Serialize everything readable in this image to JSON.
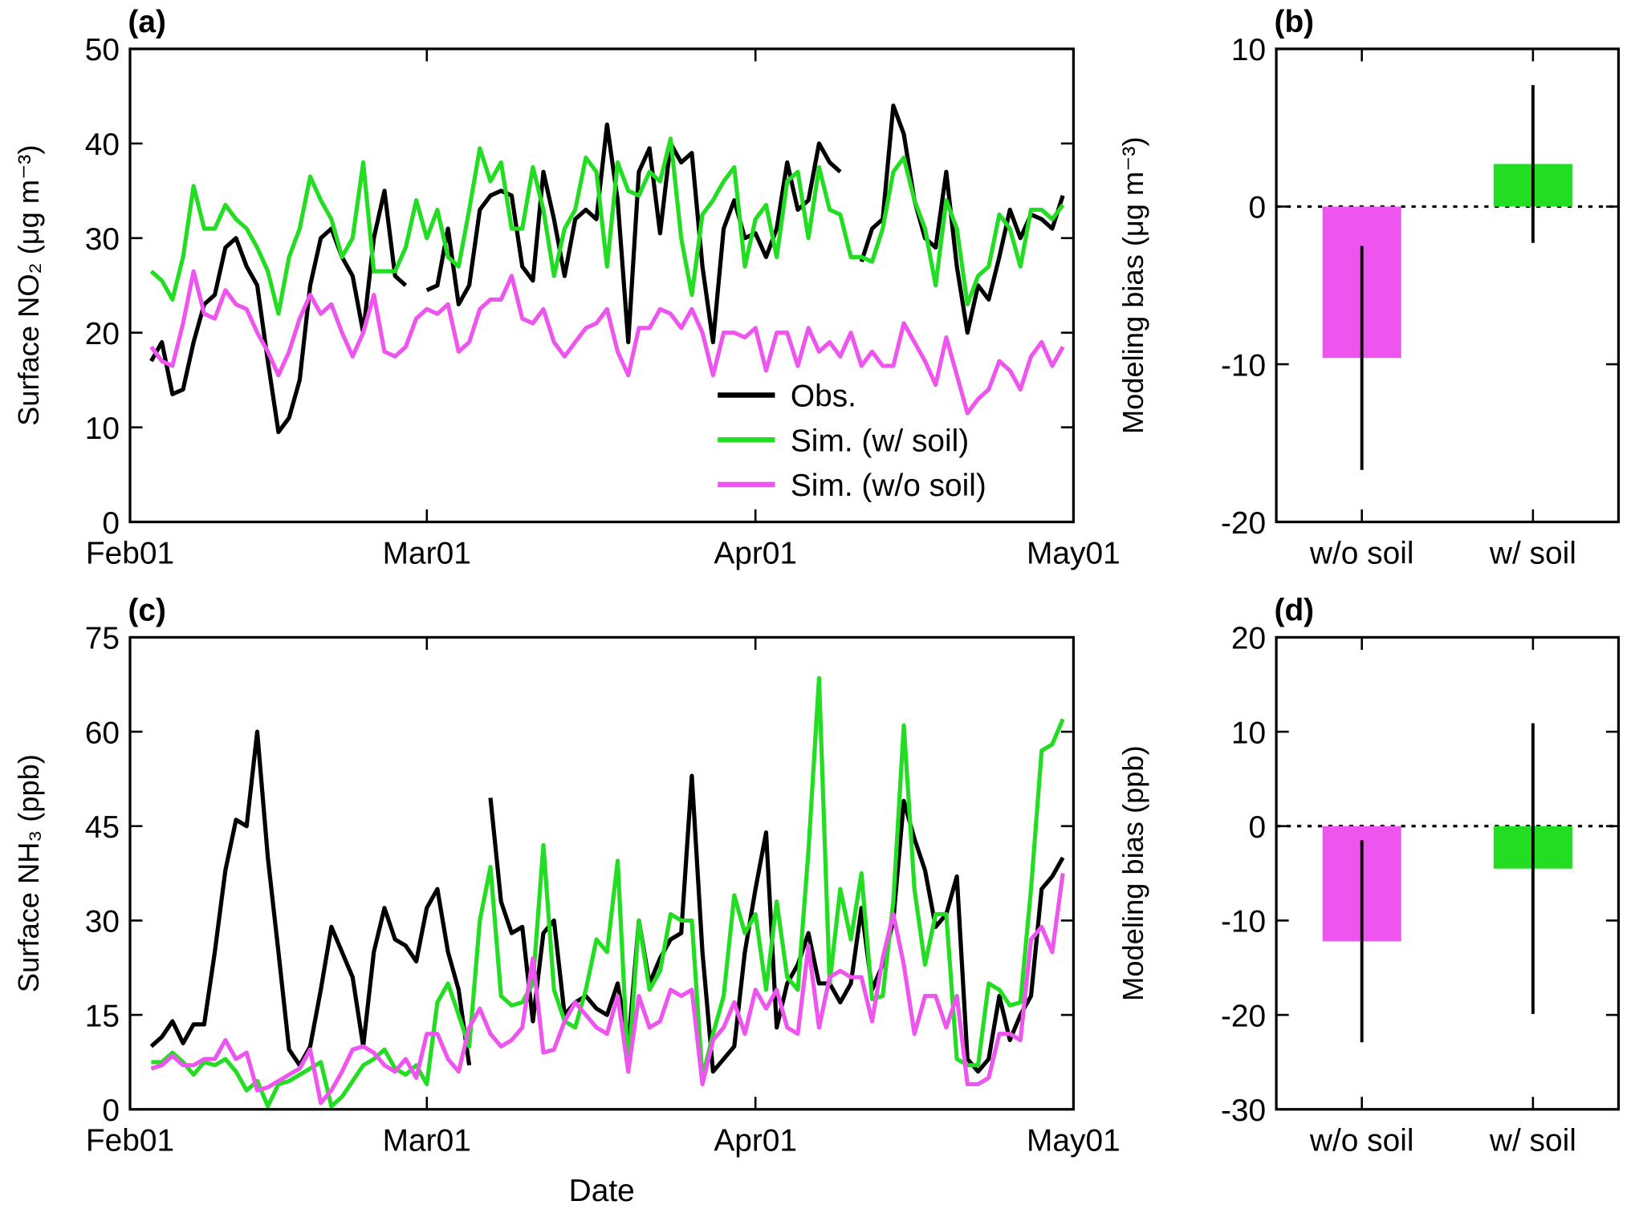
{
  "chart_data": [
    {
      "type": "line",
      "label": "(a)",
      "ylabel": "Surface NO₂ (μg m⁻³)",
      "legend": "lower right",
      "xlim": [
        0,
        89
      ],
      "xticks": [
        {
          "value": 0,
          "label": "Feb01"
        },
        {
          "value": 28,
          "label": "Mar01"
        },
        {
          "value": 59,
          "label": "Apr01"
        },
        {
          "value": 89,
          "label": "May01"
        }
      ],
      "ylim": [
        0,
        50
      ],
      "yticks": [
        0,
        10,
        20,
        30,
        40,
        50
      ],
      "x": [
        2,
        3,
        4,
        5,
        6,
        7,
        8,
        9,
        10,
        11,
        12,
        13,
        14,
        15,
        16,
        17,
        18,
        19,
        20,
        21,
        22,
        23,
        24,
        25,
        26,
        27,
        28,
        29,
        30,
        31,
        32,
        33,
        34,
        35,
        36,
        37,
        38,
        39,
        40,
        41,
        42,
        43,
        44,
        45,
        46,
        47,
        48,
        49,
        50,
        51,
        52,
        53,
        54,
        55,
        56,
        57,
        58,
        59,
        60,
        61,
        62,
        63,
        64,
        65,
        66,
        67,
        68,
        69,
        70,
        71,
        72,
        73,
        74,
        75,
        76,
        77,
        78,
        79,
        80,
        81,
        82,
        83,
        84,
        85,
        86,
        87,
        88
      ],
      "series": [
        {
          "name": "Obs.",
          "color": "#000000",
          "values": [
            17,
            19,
            13.5,
            14,
            19,
            23,
            24,
            29,
            30,
            27,
            25,
            17,
            9.5,
            11,
            15,
            25,
            30,
            31,
            28,
            26,
            20,
            30,
            35,
            26,
            25,
            null,
            24.5,
            25,
            31,
            23,
            25,
            33,
            34.5,
            35,
            34.5,
            27,
            25.5,
            37,
            32,
            26,
            32,
            33,
            32,
            42,
            34,
            19,
            37,
            39.5,
            30.5,
            40,
            38,
            39,
            27,
            19,
            31,
            34,
            30,
            30.5,
            28,
            31,
            38,
            33,
            34,
            40,
            38,
            37,
            null,
            27.5,
            31,
            32,
            44,
            41,
            34,
            30,
            29,
            37,
            27,
            20,
            25,
            23.5,
            28,
            33,
            30,
            32.5,
            32,
            31,
            34.5
          ]
        },
        {
          "name": "Sim. (w/ soil)",
          "color": "#22dd22",
          "values": [
            26.5,
            25.5,
            23.5,
            28,
            35.5,
            31,
            31,
            33.5,
            32,
            31,
            29,
            26.5,
            22,
            28,
            31,
            36.5,
            34,
            32,
            28,
            30,
            38,
            26.5,
            26.5,
            26.5,
            29,
            34,
            30,
            33,
            28,
            27,
            33,
            39.5,
            36,
            38,
            31,
            31,
            37.5,
            33,
            26,
            31,
            33,
            38.5,
            37,
            27,
            38,
            35,
            34.5,
            37,
            36,
            40.5,
            30,
            24,
            32.5,
            34,
            36,
            37.5,
            27,
            32,
            33.5,
            28,
            36,
            37,
            30,
            37.5,
            33,
            32.5,
            28,
            28,
            27.5,
            31,
            37,
            38.5,
            34,
            31,
            25,
            34,
            31,
            23,
            26,
            27,
            32.5,
            31,
            27,
            33,
            33,
            32,
            33.5
          ]
        },
        {
          "name": "Sim. (w/o soil)",
          "color": "#ee55ee",
          "values": [
            18.5,
            17,
            16.5,
            21,
            26.5,
            22,
            21.5,
            24.5,
            23,
            22.5,
            20,
            18,
            15.5,
            18,
            21.5,
            24,
            22,
            23,
            20,
            17.5,
            20,
            24,
            18,
            17.5,
            18.5,
            21.5,
            22.5,
            22,
            23,
            18,
            19,
            22.5,
            23.5,
            23.5,
            26,
            21.5,
            21,
            22.5,
            19,
            17.5,
            19,
            20.5,
            21,
            22.5,
            18,
            15.5,
            20.5,
            20.5,
            22.5,
            22,
            20.5,
            22.5,
            20,
            15.5,
            20,
            20,
            19.5,
            20.5,
            16,
            20,
            20,
            16.5,
            20.5,
            18,
            19,
            17.5,
            20,
            16.5,
            18,
            16.5,
            16.5,
            21,
            19,
            17,
            14.5,
            19.5,
            15.5,
            11.5,
            13,
            14,
            17,
            16,
            14,
            17.5,
            19,
            16.5,
            18.5
          ]
        }
      ]
    },
    {
      "type": "bar",
      "label": "(b)",
      "ylabel": "Modeling bias (μg m⁻³)",
      "categories": [
        "w/o soil",
        "w/ soil"
      ],
      "values": [
        -9.6,
        2.7
      ],
      "errors": [
        7.1,
        5.0
      ],
      "colors": [
        "#ee55ee",
        "#22dd22"
      ],
      "ylim": [
        -20,
        10
      ],
      "yticks": [
        -20,
        -10,
        0,
        10
      ]
    },
    {
      "type": "line",
      "label": "(c)",
      "ylabel": "Surface NH₃ (ppb)",
      "xlabel": "Date",
      "xlim": [
        0,
        89
      ],
      "xticks": [
        {
          "value": 0,
          "label": "Feb01"
        },
        {
          "value": 28,
          "label": "Mar01"
        },
        {
          "value": 59,
          "label": "Apr01"
        },
        {
          "value": 89,
          "label": "May01"
        }
      ],
      "ylim": [
        0,
        75
      ],
      "yticks": [
        0,
        15,
        30,
        45,
        60,
        75
      ],
      "x": [
        2,
        3,
        4,
        5,
        6,
        7,
        8,
        9,
        10,
        11,
        12,
        13,
        14,
        15,
        16,
        17,
        18,
        19,
        20,
        21,
        22,
        23,
        24,
        25,
        26,
        27,
        28,
        29,
        30,
        31,
        32,
        33,
        34,
        35,
        36,
        37,
        38,
        39,
        40,
        41,
        42,
        43,
        44,
        45,
        46,
        47,
        48,
        49,
        50,
        51,
        52,
        53,
        54,
        55,
        56,
        57,
        58,
        59,
        60,
        61,
        62,
        63,
        64,
        65,
        66,
        67,
        68,
        69,
        70,
        71,
        72,
        73,
        74,
        75,
        76,
        77,
        78,
        79,
        80,
        81,
        82,
        83,
        84,
        85,
        86,
        87,
        88
      ],
      "series": [
        {
          "color": "#000000",
          "values": [
            10,
            11.5,
            14,
            10.5,
            13.5,
            13.5,
            25,
            38,
            46,
            45,
            60,
            40,
            25,
            9.5,
            7,
            10,
            19,
            29,
            25,
            21,
            10,
            25,
            32,
            27,
            26,
            23.5,
            32,
            35,
            25,
            19,
            7,
            null,
            49.5,
            33,
            28,
            29,
            14,
            28,
            30,
            15,
            17,
            18,
            16,
            15,
            20,
            10,
            30,
            20,
            24,
            27,
            28,
            53,
            25,
            6,
            8,
            10,
            25,
            35,
            44,
            13,
            20,
            23,
            28,
            20,
            20,
            17,
            20,
            32,
            19,
            23,
            30,
            49,
            43,
            38,
            29,
            31,
            37,
            8,
            6,
            8,
            18,
            11,
            15,
            18,
            35,
            37,
            40
          ]
        },
        {
          "color": "#22dd22",
          "values": [
            7.5,
            7.5,
            9,
            7.5,
            5.5,
            7.5,
            7,
            8,
            6,
            3,
            4.5,
            0.5,
            4,
            4.5,
            5.5,
            6.5,
            7.5,
            0.5,
            2,
            4.5,
            7,
            8,
            9.5,
            6.5,
            5.5,
            7,
            4,
            17,
            20,
            15,
            10,
            30,
            38.5,
            18,
            16.5,
            17,
            20,
            42,
            19,
            14,
            13,
            19,
            27,
            25,
            39.5,
            6,
            30,
            19,
            22,
            31,
            30,
            30,
            5,
            12,
            18,
            34,
            28,
            31,
            19,
            33,
            21,
            19,
            41,
            68.5,
            20,
            35,
            27,
            37.5,
            17.5,
            18,
            33,
            61,
            35,
            23,
            31,
            31,
            8,
            7,
            7,
            20,
            19,
            16.5,
            17,
            35,
            57,
            58,
            62
          ]
        },
        {
          "color": "#ee55ee",
          "values": [
            6.5,
            7,
            8.5,
            7,
            7,
            8,
            8,
            11,
            8,
            9,
            3,
            3.5,
            4.5,
            5.5,
            6.5,
            9.5,
            1,
            3,
            6,
            9.5,
            10,
            9,
            7,
            6,
            8,
            5,
            12,
            12,
            8,
            6,
            13,
            16,
            12,
            10,
            11,
            13,
            24,
            9,
            9.5,
            14,
            17,
            15,
            13,
            12,
            18,
            6,
            18,
            13,
            14,
            19,
            18,
            19,
            4,
            11,
            13,
            17,
            12,
            19,
            16,
            19,
            13,
            12,
            26,
            13,
            21,
            22,
            21,
            21,
            14,
            24,
            31,
            23,
            12,
            18,
            18,
            13,
            18,
            4,
            4,
            5,
            12,
            12,
            11,
            27,
            29,
            25,
            37.5
          ]
        }
      ]
    },
    {
      "type": "bar",
      "label": "(d)",
      "ylabel": "Modeling bias (ppb)",
      "categories": [
        "w/o soil",
        "w/ soil"
      ],
      "values": [
        -12.2,
        -4.5
      ],
      "errors": [
        10.7,
        15.4
      ],
      "colors": [
        "#ee55ee",
        "#22dd22"
      ],
      "ylim": [
        -30,
        20
      ],
      "yticks": [
        -30,
        -20,
        -10,
        0,
        10,
        20
      ]
    }
  ]
}
